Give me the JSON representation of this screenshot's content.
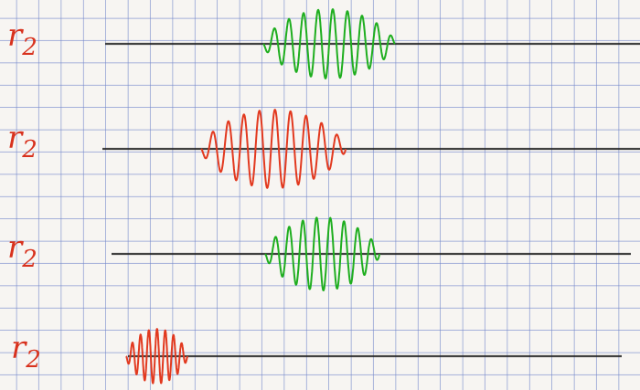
{
  "rows": [
    {
      "label": "r",
      "subscript": "2"
    },
    {
      "label": "r",
      "subscript": "2"
    },
    {
      "label": "r",
      "subscript": "2"
    },
    {
      "label": "r",
      "subscript": "2"
    }
  ]
}
